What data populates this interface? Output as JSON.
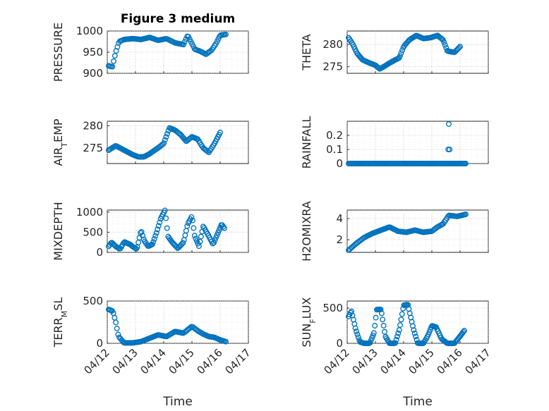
{
  "colors": {
    "marker": "#0072BD",
    "axis": "#262626"
  },
  "chart_data": [
    {
      "type": "scatter",
      "id": "pressure",
      "title": "Figure 3 medium",
      "ylabel": "PRESSURE",
      "ylabel_sub": "",
      "xlabel": "",
      "ylim": [
        900,
        1000
      ],
      "yticks": [
        900,
        950,
        1000
      ],
      "ytick_labels": [
        "900",
        "950",
        "1000"
      ],
      "xlim": [
        0,
        5
      ],
      "xticks": [
        0,
        1,
        2,
        3,
        4,
        5
      ],
      "xtick_labels": [],
      "anchors": [
        [
          0.05,
          918
        ],
        [
          0.18,
          915
        ],
        [
          0.3,
          950
        ],
        [
          0.42,
          975
        ],
        [
          0.6,
          980
        ],
        [
          0.9,
          982
        ],
        [
          1.2,
          980
        ],
        [
          1.5,
          985
        ],
        [
          1.8,
          978
        ],
        [
          2.1,
          982
        ],
        [
          2.4,
          972
        ],
        [
          2.7,
          968
        ],
        [
          2.85,
          990
        ],
        [
          3.1,
          957
        ],
        [
          3.3,
          952
        ],
        [
          3.5,
          945
        ],
        [
          3.7,
          955
        ],
        [
          3.85,
          970
        ],
        [
          4.0,
          990
        ],
        [
          4.2,
          992
        ]
      ],
      "n": 95
    },
    {
      "type": "scatter",
      "id": "theta",
      "title": "",
      "ylabel": "THETA",
      "ylabel_sub": "",
      "xlabel": "",
      "ylim": [
        273.5,
        283
      ],
      "yticks": [
        275,
        280
      ],
      "ytick_labels": [
        "275",
        "280"
      ],
      "xlim": [
        0,
        5
      ],
      "xticks": [
        0,
        1,
        2,
        3,
        4,
        5
      ],
      "xtick_labels": [],
      "anchors": [
        [
          0.05,
          281.5
        ],
        [
          0.2,
          280
        ],
        [
          0.35,
          278
        ],
        [
          0.55,
          276.5
        ],
        [
          0.8,
          275.8
        ],
        [
          1.0,
          275.3
        ],
        [
          1.15,
          274.5
        ],
        [
          1.3,
          275
        ],
        [
          1.5,
          275.8
        ],
        [
          1.7,
          276.5
        ],
        [
          1.85,
          277
        ],
        [
          2.0,
          279.5
        ],
        [
          2.2,
          281
        ],
        [
          2.45,
          282
        ],
        [
          2.7,
          281.3
        ],
        [
          2.95,
          281.5
        ],
        [
          3.2,
          282
        ],
        [
          3.4,
          281
        ],
        [
          3.55,
          278.5
        ],
        [
          3.8,
          278.2
        ],
        [
          4.0,
          279.5
        ]
      ],
      "n": 105
    },
    {
      "type": "scatter",
      "id": "air_temp",
      "title": "",
      "ylabel": "AIR",
      "ylabel_sub": "T",
      "ylabel_suffix": "EMP",
      "xlabel": "",
      "ylim": [
        271.5,
        281
      ],
      "yticks": [
        275,
        280
      ],
      "ytick_labels": [
        "275",
        "280"
      ],
      "xlim": [
        0,
        5
      ],
      "xticks": [
        0,
        1,
        2,
        3,
        4,
        5
      ],
      "xtick_labels": [],
      "anchors": [
        [
          0.05,
          274.5
        ],
        [
          0.3,
          275.5
        ],
        [
          0.6,
          274.5
        ],
        [
          0.9,
          273.5
        ],
        [
          1.1,
          273
        ],
        [
          1.3,
          273
        ],
        [
          1.5,
          273.7
        ],
        [
          1.8,
          275
        ],
        [
          2.0,
          276
        ],
        [
          2.2,
          279.5
        ],
        [
          2.4,
          279
        ],
        [
          2.6,
          278
        ],
        [
          2.8,
          276.5
        ],
        [
          3.0,
          277.5
        ],
        [
          3.2,
          277
        ],
        [
          3.4,
          275
        ],
        [
          3.6,
          274
        ],
        [
          3.8,
          276
        ],
        [
          4.0,
          278.5
        ]
      ],
      "n": 100
    },
    {
      "type": "scatter",
      "id": "rainfall",
      "title": "",
      "ylabel": "RAINFALL",
      "ylabel_sub": "",
      "xlabel": "",
      "ylim": [
        0,
        0.3
      ],
      "yticks": [
        0,
        0.1,
        0.2
      ],
      "ytick_labels": [
        "0",
        "0.1",
        "0.2"
      ],
      "xlim": [
        0,
        5
      ],
      "xticks": [
        0,
        1,
        2,
        3,
        4,
        5
      ],
      "xtick_labels": [],
      "anchors": [
        [
          0.05,
          0
        ],
        [
          4.2,
          0
        ]
      ],
      "n": 110,
      "extra_points": [
        [
          3.6,
          0.28
        ],
        [
          3.58,
          0.1
        ],
        [
          3.63,
          0.1
        ]
      ]
    },
    {
      "type": "scatter",
      "id": "mixdepth",
      "title": "",
      "ylabel": "MIXDEPTH",
      "ylabel_sub": "",
      "xlabel": "",
      "ylim": [
        0,
        1050
      ],
      "yticks": [
        0,
        500,
        1000
      ],
      "ytick_labels": [
        "0",
        "500",
        "1000"
      ],
      "xlim": [
        0,
        5
      ],
      "xticks": [
        0,
        1,
        2,
        3,
        4,
        5
      ],
      "xtick_labels": [],
      "anchors": [
        [
          0.05,
          150
        ],
        [
          0.15,
          250
        ],
        [
          0.3,
          150
        ],
        [
          0.45,
          80
        ],
        [
          0.6,
          260
        ],
        [
          0.8,
          200
        ],
        [
          0.95,
          120
        ],
        [
          1.05,
          80
        ],
        [
          1.2,
          550
        ],
        [
          1.3,
          300
        ],
        [
          1.45,
          150
        ],
        [
          1.6,
          200
        ],
        [
          1.75,
          500
        ],
        [
          1.9,
          850
        ],
        [
          2.05,
          1050
        ],
        [
          2.15,
          400
        ],
        [
          2.3,
          250
        ],
        [
          2.5,
          100
        ],
        [
          2.7,
          250
        ],
        [
          2.85,
          700
        ],
        [
          3.0,
          900
        ],
        [
          3.1,
          400
        ],
        [
          3.25,
          150
        ],
        [
          3.4,
          650
        ],
        [
          3.6,
          400
        ],
        [
          3.75,
          200
        ],
        [
          3.9,
          450
        ],
        [
          4.05,
          700
        ],
        [
          4.15,
          600
        ]
      ],
      "n": 110
    },
    {
      "type": "scatter",
      "id": "h2omixra",
      "title": "",
      "ylabel": "H2OMIXRA",
      "ylabel_sub": "",
      "xlabel": "",
      "ylim": [
        0.8,
        4.8
      ],
      "yticks": [
        2,
        4
      ],
      "ytick_labels": [
        "2",
        "4"
      ],
      "xlim": [
        0,
        5
      ],
      "xticks": [
        0,
        1,
        2,
        3,
        4,
        5
      ],
      "xtick_labels": [],
      "anchors": [
        [
          0.05,
          1.0
        ],
        [
          0.3,
          1.6
        ],
        [
          0.6,
          2.2
        ],
        [
          0.9,
          2.6
        ],
        [
          1.2,
          2.9
        ],
        [
          1.5,
          3.2
        ],
        [
          1.8,
          2.8
        ],
        [
          2.1,
          2.7
        ],
        [
          2.4,
          2.9
        ],
        [
          2.7,
          2.7
        ],
        [
          3.0,
          2.8
        ],
        [
          3.2,
          3.2
        ],
        [
          3.4,
          3.5
        ],
        [
          3.6,
          4.3
        ],
        [
          3.9,
          4.2
        ],
        [
          4.2,
          4.4
        ]
      ],
      "n": 100
    },
    {
      "type": "scatter",
      "id": "terr_msl",
      "title": "",
      "ylabel": "TERR",
      "ylabel_sub": "M",
      "ylabel_suffix": "SL",
      "xlabel": "Time",
      "ylim": [
        0,
        500
      ],
      "yticks": [
        0,
        500
      ],
      "ytick_labels": [
        "0",
        "500"
      ],
      "xlim": [
        0,
        5
      ],
      "xticks": [
        0,
        1,
        2,
        3,
        4,
        5
      ],
      "xtick_labels": [
        "04/12",
        "04/13",
        "04/14",
        "04/15",
        "04/16",
        "04/17"
      ],
      "anchors": [
        [
          0.05,
          400
        ],
        [
          0.2,
          380
        ],
        [
          0.3,
          250
        ],
        [
          0.4,
          80
        ],
        [
          0.6,
          5
        ],
        [
          0.9,
          5
        ],
        [
          1.2,
          20
        ],
        [
          1.5,
          60
        ],
        [
          1.8,
          100
        ],
        [
          2.1,
          80
        ],
        [
          2.4,
          140
        ],
        [
          2.7,
          120
        ],
        [
          3.0,
          200
        ],
        [
          3.2,
          150
        ],
        [
          3.4,
          110
        ],
        [
          3.6,
          80
        ],
        [
          3.8,
          70
        ],
        [
          4.0,
          40
        ],
        [
          4.2,
          20
        ]
      ],
      "n": 100
    },
    {
      "type": "scatter",
      "id": "sun_flux",
      "title": "",
      "ylabel": "SUN",
      "ylabel_sub": "F",
      "ylabel_suffix": "LUX",
      "xlabel": "Time",
      "ylim": [
        0,
        600
      ],
      "yticks": [
        0,
        500
      ],
      "ytick_labels": [
        "0",
        "500"
      ],
      "xlim": [
        0,
        5
      ],
      "xticks": [
        0,
        1,
        2,
        3,
        4,
        5
      ],
      "xtick_labels": [
        "04/12",
        "04/13",
        "04/14",
        "04/15",
        "04/16",
        "04/17"
      ],
      "anchors": [
        [
          0.05,
          380
        ],
        [
          0.15,
          460
        ],
        [
          0.3,
          200
        ],
        [
          0.45,
          20
        ],
        [
          0.6,
          0
        ],
        [
          0.8,
          0
        ],
        [
          0.95,
          150
        ],
        [
          1.05,
          480
        ],
        [
          1.2,
          480
        ],
        [
          1.35,
          100
        ],
        [
          1.5,
          0
        ],
        [
          1.7,
          0
        ],
        [
          1.85,
          200
        ],
        [
          2.0,
          540
        ],
        [
          2.15,
          550
        ],
        [
          2.35,
          200
        ],
        [
          2.5,
          0
        ],
        [
          2.7,
          0
        ],
        [
          2.85,
          100
        ],
        [
          3.0,
          250
        ],
        [
          3.15,
          230
        ],
        [
          3.35,
          60
        ],
        [
          3.55,
          0
        ],
        [
          3.8,
          0
        ],
        [
          4.0,
          100
        ],
        [
          4.15,
          180
        ]
      ],
      "n": 120
    }
  ]
}
